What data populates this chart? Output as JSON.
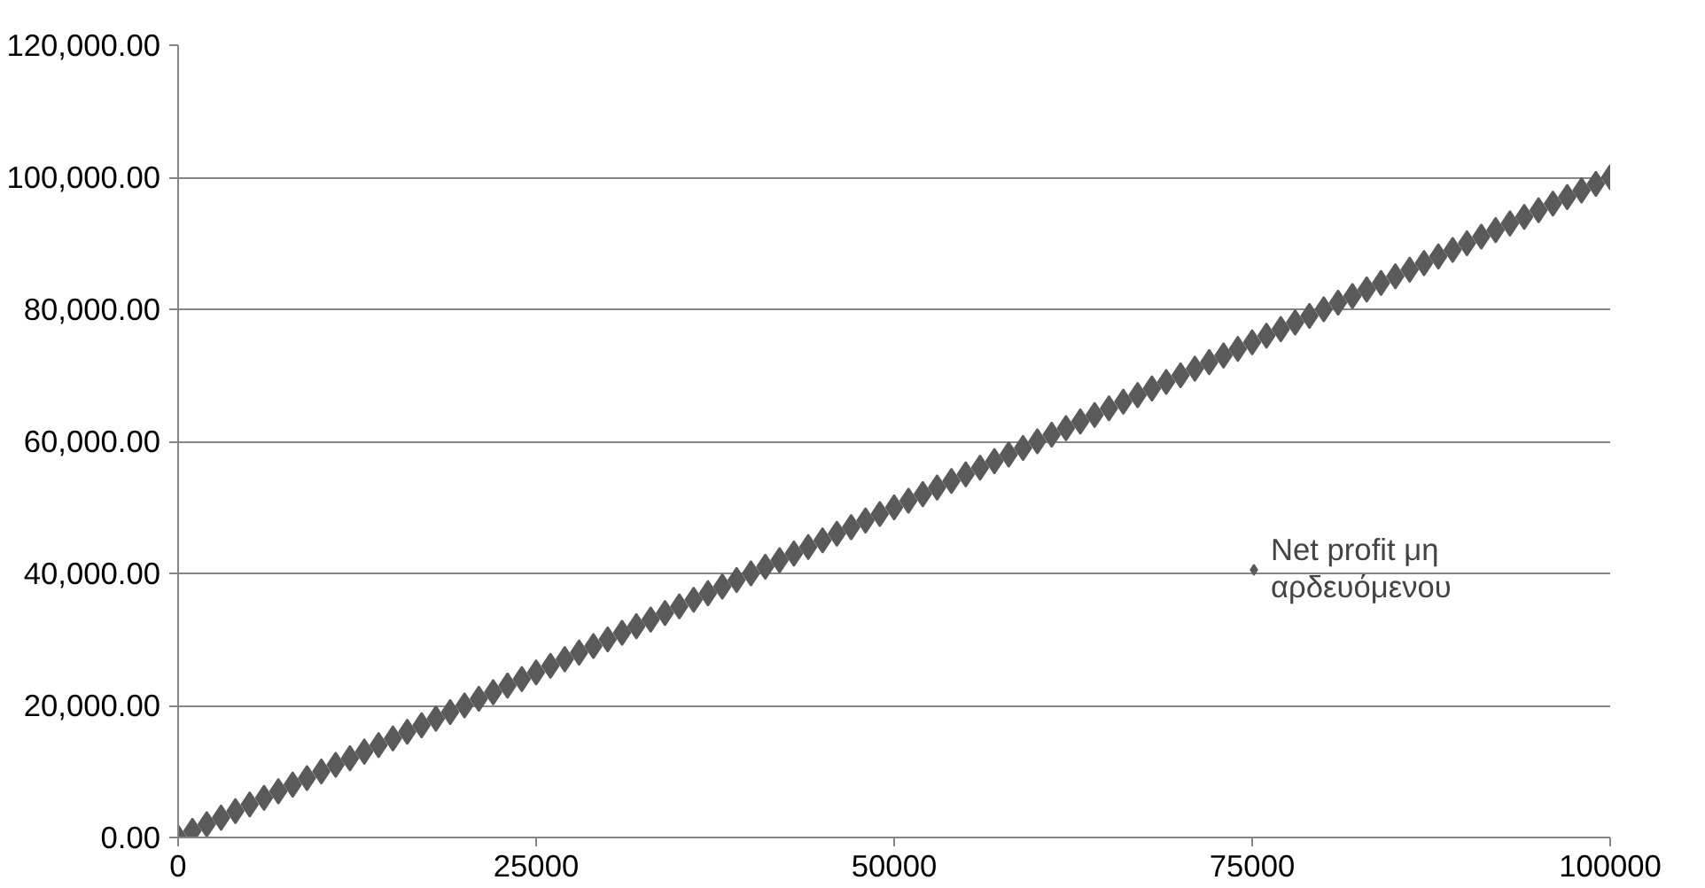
{
  "chart_data": {
    "type": "scatter",
    "marker": "diamond",
    "grid": "y",
    "legend": "right",
    "x": [
      0,
      1000,
      2000,
      3000,
      4000,
      5000,
      6000,
      7000,
      8000,
      9000,
      10000,
      11000,
      12000,
      13000,
      14000,
      15000,
      16000,
      17000,
      18000,
      19000,
      20000,
      21000,
      22000,
      23000,
      24000,
      25000,
      26000,
      27000,
      28000,
      29000,
      30000,
      31000,
      32000,
      33000,
      34000,
      35000,
      36000,
      37000,
      38000,
      39000,
      40000,
      41000,
      42000,
      43000,
      44000,
      45000,
      46000,
      47000,
      48000,
      49000,
      50000,
      51000,
      52000,
      53000,
      54000,
      55000,
      56000,
      57000,
      58000,
      59000,
      60000,
      61000,
      62000,
      63000,
      64000,
      65000,
      66000,
      67000,
      68000,
      69000,
      70000,
      71000,
      72000,
      73000,
      74000,
      75000,
      76000,
      77000,
      78000,
      79000,
      80000,
      81000,
      82000,
      83000,
      84000,
      85000,
      86000,
      87000,
      88000,
      89000,
      90000,
      91000,
      92000,
      93000,
      94000,
      95000,
      96000,
      97000,
      98000,
      99000,
      100000
    ],
    "series": [
      {
        "name": "Net profit μη αρδευόμενου",
        "color": "#5a5a5a",
        "values": [
          0,
          1000,
          2000,
          3000,
          4000,
          5000,
          6000,
          7000,
          8000,
          9000,
          10000,
          11000,
          12000,
          13000,
          14000,
          15000,
          16000,
          17000,
          18000,
          19000,
          20000,
          21000,
          22000,
          23000,
          24000,
          25000,
          26000,
          27000,
          28000,
          29000,
          30000,
          31000,
          32000,
          33000,
          34000,
          35000,
          36000,
          37000,
          38000,
          39000,
          40000,
          41000,
          42000,
          43000,
          44000,
          45000,
          46000,
          47000,
          48000,
          49000,
          50000,
          51000,
          52000,
          53000,
          54000,
          55000,
          56000,
          57000,
          58000,
          59000,
          60000,
          61000,
          62000,
          63000,
          64000,
          65000,
          66000,
          67000,
          68000,
          69000,
          70000,
          71000,
          72000,
          73000,
          74000,
          75000,
          76000,
          77000,
          78000,
          79000,
          80000,
          81000,
          82000,
          83000,
          84000,
          85000,
          86000,
          87000,
          88000,
          89000,
          90000,
          91000,
          92000,
          93000,
          94000,
          95000,
          96000,
          97000,
          98000,
          99000,
          100000
        ]
      }
    ],
    "xlim": [
      0,
      100000
    ],
    "xticks": [
      0,
      25000,
      50000,
      75000,
      100000
    ],
    "ylim": [
      0,
      120000
    ],
    "yticks": [
      {
        "value": 0,
        "label": "0.00"
      },
      {
        "value": 20000,
        "label": "20,000.00"
      },
      {
        "value": 40000,
        "label": "40,000.00"
      },
      {
        "value": 60000,
        "label": "60,000.00"
      },
      {
        "value": 80000,
        "label": "80,000.00"
      },
      {
        "value": 100000,
        "label": "100,000.00"
      },
      {
        "value": 120000,
        "label": "120,000.00"
      }
    ]
  }
}
